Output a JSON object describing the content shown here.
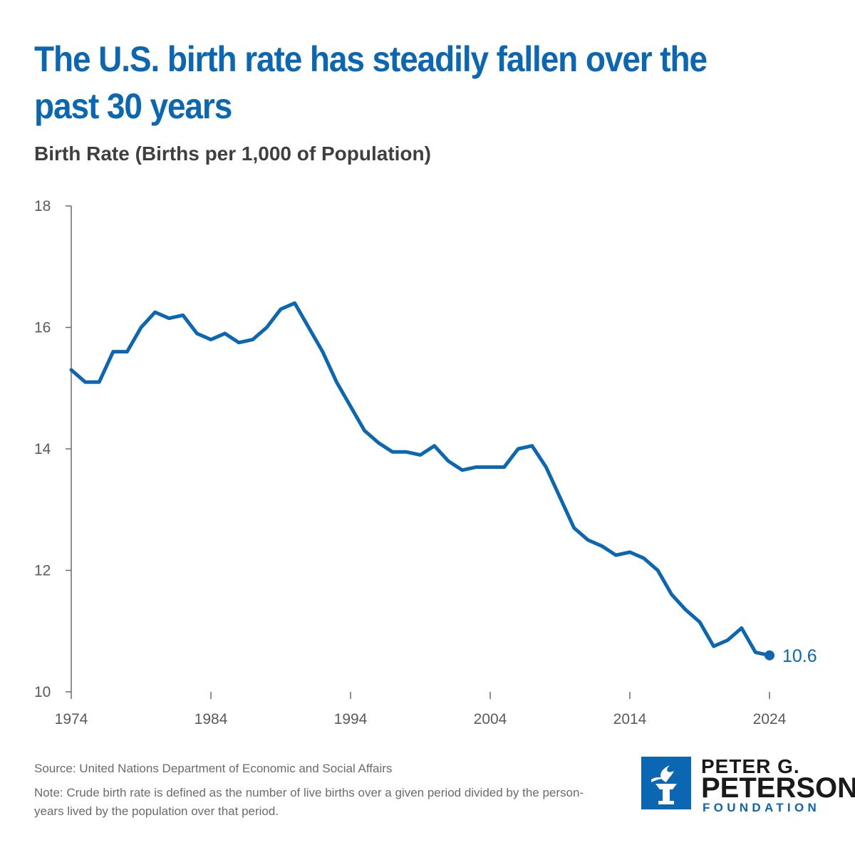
{
  "title": "The U.S. birth rate has steadily fallen over the past 30 years",
  "subtitle": "Birth Rate (Births per 1,000 of Population)",
  "colors": {
    "accent": "#0b67b2",
    "axis": "#6b6b6b",
    "text": "#3f3f3f"
  },
  "chart_data": {
    "type": "line",
    "title": "The U.S. birth rate has steadily fallen over the past 30 years",
    "ylabel": "Birth Rate (Births per 1,000 of Population)",
    "xlabel": "",
    "ylim": [
      10,
      18
    ],
    "xlim": [
      1974,
      2024
    ],
    "x_ticks": [
      1974,
      1984,
      1994,
      2004,
      2014,
      2024
    ],
    "y_ticks": [
      10,
      12,
      14,
      16,
      18
    ],
    "grid": false,
    "series": [
      {
        "name": "U.S. crude birth rate",
        "x": [
          1974,
          1975,
          1976,
          1977,
          1978,
          1979,
          1980,
          1981,
          1982,
          1983,
          1984,
          1985,
          1986,
          1987,
          1988,
          1989,
          1990,
          1991,
          1992,
          1993,
          1994,
          1995,
          1996,
          1997,
          1998,
          1999,
          2000,
          2001,
          2002,
          2003,
          2004,
          2005,
          2006,
          2007,
          2008,
          2009,
          2010,
          2011,
          2012,
          2013,
          2014,
          2015,
          2016,
          2017,
          2018,
          2019,
          2020,
          2021,
          2022,
          2023,
          2024
        ],
        "values": [
          15.3,
          15.1,
          15.1,
          15.6,
          15.6,
          16.0,
          16.25,
          16.15,
          16.2,
          15.9,
          15.8,
          15.9,
          15.75,
          15.8,
          16.0,
          16.3,
          16.4,
          16.0,
          15.6,
          15.1,
          14.7,
          14.3,
          14.1,
          13.95,
          13.95,
          13.9,
          14.05,
          13.8,
          13.65,
          13.7,
          13.7,
          13.7,
          14.0,
          14.05,
          13.7,
          13.2,
          12.7,
          12.5,
          12.4,
          12.25,
          12.3,
          12.2,
          12.0,
          11.6,
          11.35,
          11.15,
          10.75,
          10.85,
          11.05,
          10.65,
          10.6
        ]
      }
    ],
    "end_label": "10.6"
  },
  "footer": {
    "source": "Source: United Nations Department of Economic and Social Affairs",
    "note": "Note: Crude birth rate is defined as the number of live births over a given period divided by the person-years lived by the population over that period."
  },
  "logo": {
    "line1": "PETER G.",
    "line2": "PETERSON",
    "line3": "FOUNDATION"
  }
}
